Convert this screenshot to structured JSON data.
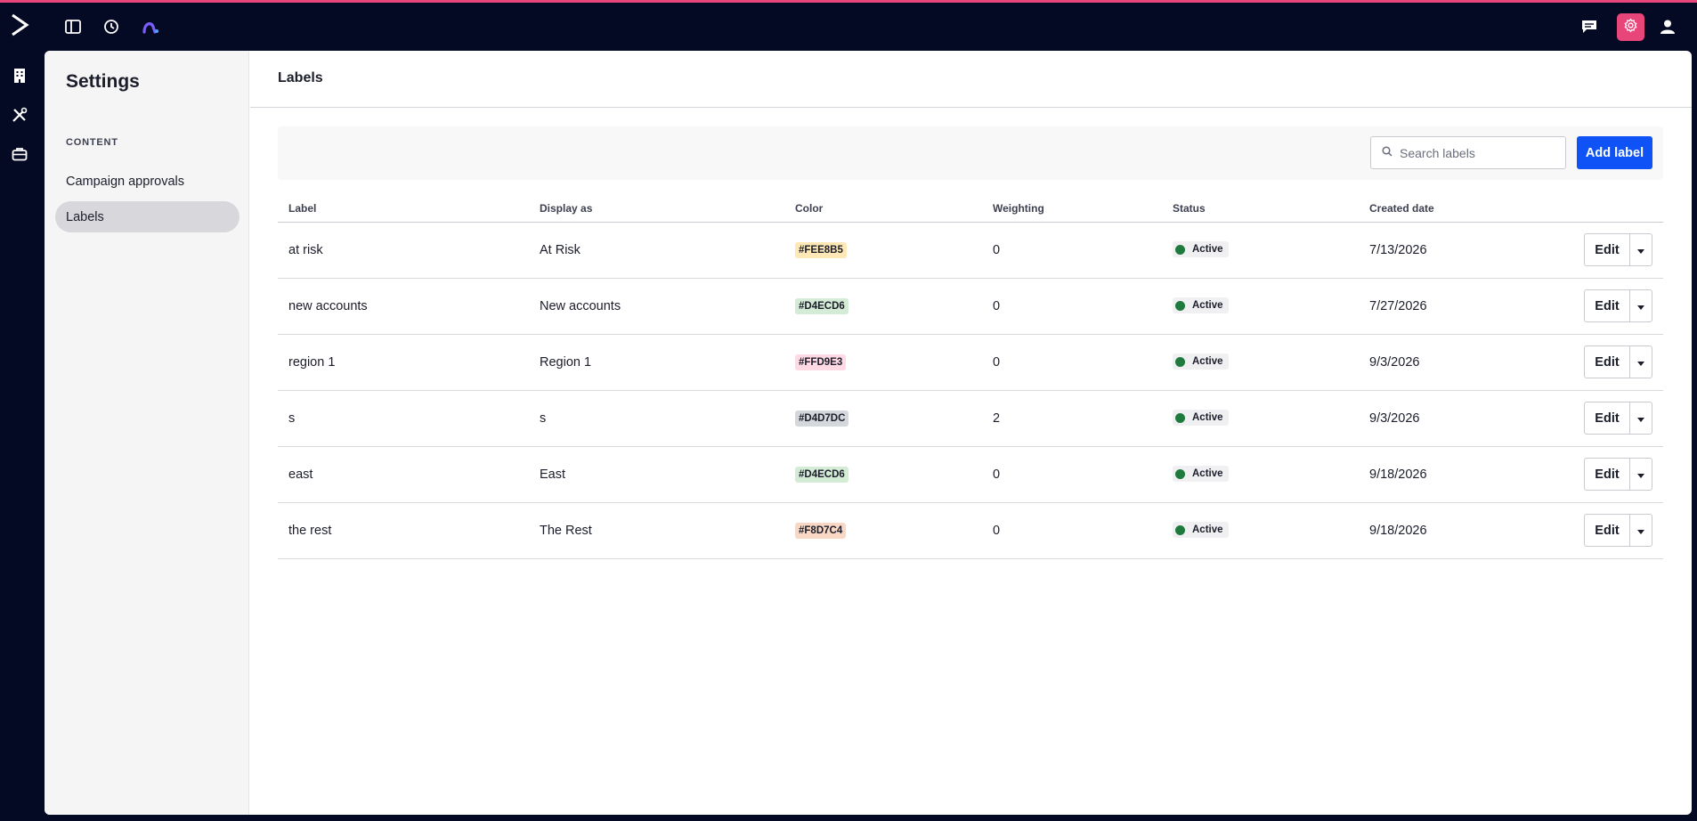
{
  "app": {
    "accent_color": "#e8457a",
    "brand_color": "#050a24",
    "topbar_icons": [
      "panel-toggle-icon",
      "recent-history-icon",
      "brand-glyph-icon"
    ],
    "topbar_right_icons": [
      "chat-icon",
      "gear-icon",
      "user-icon"
    ],
    "rail_icons": [
      "building-icon",
      "tools-icon",
      "briefcase-icon"
    ]
  },
  "sidebar": {
    "title": "Settings",
    "section_label": "CONTENT",
    "items": [
      {
        "label": "Campaign approvals",
        "active": false
      },
      {
        "label": "Labels",
        "active": true
      }
    ]
  },
  "main": {
    "title": "Labels",
    "search": {
      "placeholder": "Search labels",
      "value": ""
    },
    "add_button_label": "Add label",
    "primary_color": "#0f52f5",
    "columns": [
      "Label",
      "Display as",
      "Color",
      "Weighting",
      "Status",
      "Created date"
    ],
    "rows": [
      {
        "label": "at risk",
        "display": "At Risk",
        "color": "#FEE8B5",
        "weighting": "0",
        "status": "Active",
        "created": "7/13/2026"
      },
      {
        "label": "new accounts",
        "display": "New accounts",
        "color": "#D4ECD6",
        "weighting": "0",
        "status": "Active",
        "created": "7/27/2026"
      },
      {
        "label": "region 1",
        "display": "Region 1",
        "color": "#FFD9E3",
        "weighting": "0",
        "status": "Active",
        "created": "9/3/2026"
      },
      {
        "label": "s",
        "display": "s",
        "color": "#D4D7DC",
        "weighting": "2",
        "status": "Active",
        "created": "9/3/2026"
      },
      {
        "label": "east",
        "display": "East",
        "color": "#D4ECD6",
        "weighting": "0",
        "status": "Active",
        "created": "9/18/2026"
      },
      {
        "label": "the rest",
        "display": "The Rest",
        "color": "#F8D7C4",
        "weighting": "0",
        "status": "Active",
        "created": "9/18/2026"
      }
    ],
    "edit_label": "Edit"
  }
}
